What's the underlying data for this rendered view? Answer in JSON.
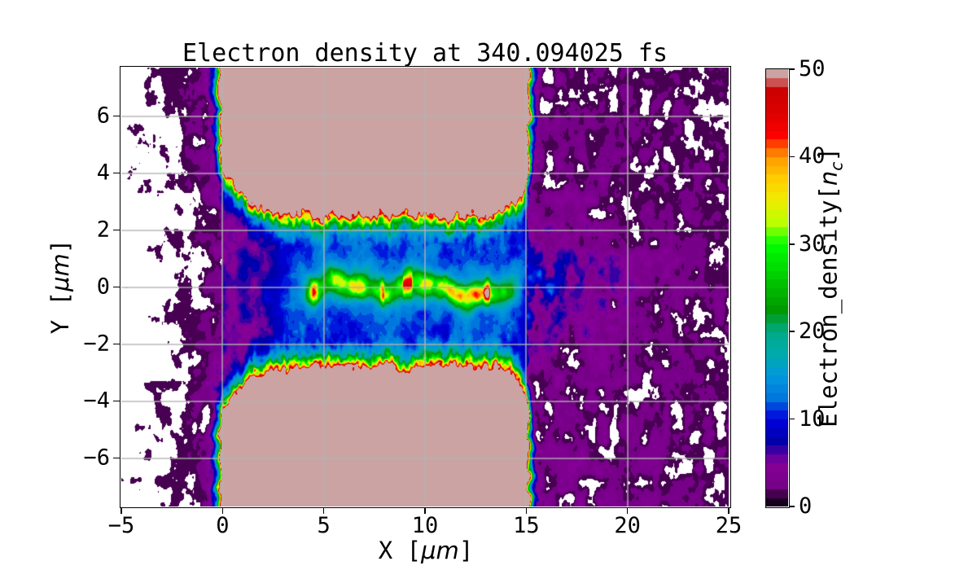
{
  "figure": {
    "background": "#ffffff",
    "title": "Electron_density at 340.094025 fs",
    "x_axis": {
      "label_prefix": "X [",
      "label_unit": "μm",
      "label_suffix": "]",
      "tick_labels": [
        "−5",
        "0",
        "5",
        "10",
        "15",
        "20",
        "25"
      ],
      "tick_values": [
        -5,
        0,
        5,
        10,
        15,
        20,
        25
      ],
      "range": [
        -5,
        25
      ]
    },
    "y_axis": {
      "label_prefix": "Y [",
      "label_unit": "μm",
      "label_suffix": "]",
      "tick_labels": [
        "6",
        "4",
        "2",
        "0",
        "−2",
        "−4",
        "−6"
      ],
      "tick_values": [
        6,
        4,
        2,
        0,
        -2,
        -4,
        -6
      ],
      "range": [
        -7.7,
        7.7
      ]
    },
    "grid": {
      "show": true,
      "color": "#b2b2b2",
      "x_lines": [
        0,
        5,
        10,
        15,
        20
      ],
      "y_lines": [
        -6,
        -4,
        -2,
        0,
        2,
        4,
        6
      ]
    },
    "colorbar": {
      "label_prefix": "Electron_density[",
      "label_symbol": "n",
      "label_subscript": "c",
      "label_suffix": "]",
      "tick_labels": [
        "0",
        "10",
        "20",
        "30",
        "40",
        "50"
      ],
      "tick_values": [
        0,
        10,
        20,
        30,
        40,
        50
      ],
      "range": [
        0,
        50
      ],
      "n_levels": 50
    }
  },
  "chart_data": {
    "type": "heatmap",
    "title": "Electron_density at 340.094025 fs",
    "time_fs": 340.094025,
    "xlabel": "X [μm]",
    "ylabel": "Y [μm]",
    "colorbar_label": "Electron_density[n_c]",
    "xlim": [
      -5,
      25
    ],
    "ylim": [
      -7.7,
      7.7
    ],
    "vmin": 0,
    "vmax": 50,
    "levels_step": 1,
    "grid": true,
    "colormap_name": "nipy_spectral (discrete, ~50 bands)",
    "colormap_stops": [
      [
        0.0,
        "#000000"
      ],
      [
        0.05,
        "#770088"
      ],
      [
        0.1,
        "#880099"
      ],
      [
        0.15,
        "#0000aa"
      ],
      [
        0.2,
        "#0000dd"
      ],
      [
        0.25,
        "#0077dd"
      ],
      [
        0.3,
        "#0099dd"
      ],
      [
        0.35,
        "#00aaaa"
      ],
      [
        0.4,
        "#00aa88"
      ],
      [
        0.45,
        "#009900"
      ],
      [
        0.5,
        "#00bb00"
      ],
      [
        0.55,
        "#00dd00"
      ],
      [
        0.6,
        "#00ff00"
      ],
      [
        0.65,
        "#bbff00"
      ],
      [
        0.7,
        "#eeee00"
      ],
      [
        0.75,
        "#ffcc00"
      ],
      [
        0.8,
        "#ff9900"
      ],
      [
        0.85,
        "#ff0000"
      ],
      [
        0.9,
        "#dd0000"
      ],
      [
        0.95,
        "#cc0000"
      ],
      [
        1.0,
        "#cccccc"
      ]
    ],
    "saturated_fill_hex": "#cca3a3",
    "features": {
      "description": "2D contour map of electron density (units of critical density n_c) from a laser-plasma channel simulation; a laser-drilled channel between two dense target slabs.",
      "dense_slabs": {
        "x_range_um": [
          0,
          15
        ],
        "top_slab_lower_edge_y_um": {
          "at_x0": 4.3,
          "mid_channel": 2.6,
          "near_x15": 4.2
        },
        "bottom_slab_upper_edge_y_um": {
          "at_x0": -4.3,
          "mid_channel": -2.9,
          "near_x15": -4.0
        },
        "interior_density_nc": 50,
        "edge_sheath": "thin rainbow gradient (red~45 to blue~10) about 0.3-0.7 um wide along all slab boundaries"
      },
      "channel": {
        "x_range_um": [
          0,
          15
        ],
        "y_extent_um": [
          -2.9,
          2.6
        ],
        "typical_density_nc": [
          2,
          15
        ]
      },
      "axial_filament": {
        "y_center_um": 0,
        "x_range_um": [
          4,
          14.5
        ],
        "typical_density_nc": [
          18,
          35
        ],
        "hot_spots_nc": [
          40,
          48
        ],
        "hot_spot_x_um": [
          6,
          11.8
        ]
      },
      "ambient_plasma_right": {
        "x_range_um": [
          15,
          25
        ],
        "typical_density_nc": [
          0,
          6
        ],
        "axial_blue_band": {
          "x_range_um": [
            15,
            20
          ],
          "y_extent_um": [
            -1.5,
            1.5
          ],
          "density_nc": [
            8,
            16
          ]
        }
      },
      "vacuum_left": {
        "x_range_um": [
          -5,
          0
        ],
        "typical_density_nc": [
          0,
          3
        ],
        "note": "sparse purple speckle fading to white toward x=-5"
      }
    }
  }
}
